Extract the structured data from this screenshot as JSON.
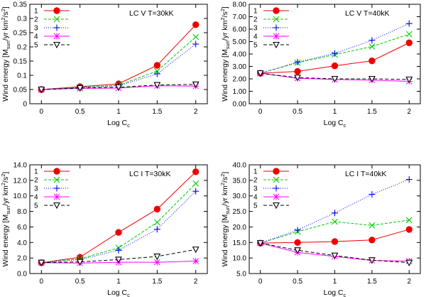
{
  "chart_data": [
    {
      "type": "line",
      "title": "LC V T=30kK",
      "xlabel": "Log C",
      "xlabel_sub": "c",
      "ylabel": "Wind energy [M",
      "ylabel_sub": "sun",
      "ylabel_rest": "/yr km",
      "ylabel_sup1": "2",
      "ylabel_mid": "/s",
      "ylabel_sup2": "2",
      "ylabel_end": "]",
      "x": [
        0,
        0.5,
        1,
        1.5,
        2
      ],
      "xticks": [
        "0",
        "0.5",
        "1",
        "1.5",
        "2"
      ],
      "xlim": [
        -0.15,
        2.15
      ],
      "ylim": [
        0,
        0.35
      ],
      "yticks": [
        0,
        0.05,
        0.1,
        0.15,
        0.2,
        0.25,
        0.3,
        0.35
      ],
      "ytick_labels": [
        "0",
        "0.05",
        "0.1",
        "0.15",
        "0.2",
        "0.25",
        "0.3",
        "0.35"
      ],
      "series": [
        {
          "name": "1",
          "color": "#ee0000",
          "marker": "circle",
          "dash": "",
          "values": [
            0.05,
            0.06,
            0.07,
            0.135,
            0.278
          ]
        },
        {
          "name": "2",
          "color": "#00cc00",
          "marker": "x",
          "dash": "4,2",
          "values": [
            0.05,
            0.058,
            0.065,
            0.115,
            0.235
          ]
        },
        {
          "name": "3",
          "color": "#0000ff",
          "marker": "plus",
          "dash": "1,2",
          "values": [
            0.05,
            0.057,
            0.063,
            0.105,
            0.21
          ]
        },
        {
          "name": "4",
          "color": "#ff00ff",
          "marker": "asterisk",
          "dash": "",
          "values": [
            0.05,
            0.054,
            0.055,
            0.063,
            0.062
          ]
        },
        {
          "name": "5",
          "color": "#000000",
          "marker": "triangle",
          "dash": "5,3",
          "values": [
            0.05,
            0.055,
            0.058,
            0.066,
            0.068
          ]
        }
      ]
    },
    {
      "type": "line",
      "title": "LC V T=40kK",
      "xlabel": "Log C",
      "xlabel_sub": "c",
      "ylabel": "Wind energy [M",
      "ylabel_sub": "sun",
      "ylabel_rest": "/yr km",
      "ylabel_sup1": "2",
      "ylabel_mid": "/s",
      "ylabel_sup2": "2",
      "ylabel_end": "]",
      "x": [
        0,
        0.5,
        1,
        1.5,
        2
      ],
      "xticks": [
        "0",
        "0.5",
        "1",
        "1.5",
        "2"
      ],
      "xlim": [
        -0.15,
        2.15
      ],
      "ylim": [
        0,
        8
      ],
      "yticks": [
        0,
        1,
        2,
        3,
        4,
        5,
        6,
        7,
        8
      ],
      "ytick_labels": [
        "0.00",
        "1.00",
        "2.00",
        "3.00",
        "4.00",
        "5.00",
        "6.00",
        "7.00",
        "8.00"
      ],
      "series": [
        {
          "name": "1",
          "color": "#ee0000",
          "marker": "circle",
          "dash": "",
          "values": [
            2.45,
            2.6,
            3.05,
            3.45,
            4.9
          ]
        },
        {
          "name": "2",
          "color": "#00cc00",
          "marker": "x",
          "dash": "4,2",
          "values": [
            2.45,
            3.3,
            3.95,
            4.6,
            5.6
          ]
        },
        {
          "name": "3",
          "color": "#0000ff",
          "marker": "plus",
          "dash": "1,2",
          "values": [
            2.45,
            3.35,
            4.05,
            5.1,
            6.45
          ]
        },
        {
          "name": "4",
          "color": "#ff00ff",
          "marker": "asterisk",
          "dash": "",
          "values": [
            2.45,
            2.05,
            1.95,
            1.9,
            1.8
          ]
        },
        {
          "name": "5",
          "color": "#000000",
          "marker": "triangle",
          "dash": "5,3",
          "values": [
            2.45,
            2.1,
            2.0,
            2.0,
            1.95
          ]
        }
      ]
    },
    {
      "type": "line",
      "title": "LC I T=30kK",
      "xlabel": "Log C",
      "xlabel_sub": "c",
      "ylabel": "Wind energy [M",
      "ylabel_sub": "sun",
      "ylabel_rest": "/yr km",
      "ylabel_sup1": "2",
      "ylabel_mid": "/s",
      "ylabel_sup2": "2",
      "ylabel_end": "]",
      "x": [
        0,
        0.5,
        1,
        1.5,
        2
      ],
      "xticks": [
        "0",
        "0.5",
        "1",
        "1.5",
        "2"
      ],
      "xlim": [
        -0.15,
        2.15
      ],
      "ylim": [
        0,
        14
      ],
      "yticks": [
        0,
        2,
        4,
        6,
        8,
        10,
        12,
        14
      ],
      "ytick_labels": [
        "0.0",
        "2.0",
        "4.0",
        "6.0",
        "8.0",
        "10.0",
        "12.0",
        "14.0"
      ],
      "series": [
        {
          "name": "1",
          "color": "#ee0000",
          "marker": "circle",
          "dash": "",
          "values": [
            1.4,
            2.1,
            5.3,
            8.3,
            13.1
          ]
        },
        {
          "name": "2",
          "color": "#00cc00",
          "marker": "x",
          "dash": "4,2",
          "values": [
            1.4,
            1.9,
            3.3,
            6.6,
            11.6
          ]
        },
        {
          "name": "3",
          "color": "#0000ff",
          "marker": "plus",
          "dash": "1,2",
          "values": [
            1.4,
            1.8,
            3.0,
            5.7,
            10.6
          ]
        },
        {
          "name": "4",
          "color": "#ff00ff",
          "marker": "asterisk",
          "dash": "",
          "values": [
            1.4,
            1.35,
            1.45,
            1.45,
            1.6
          ]
        },
        {
          "name": "5",
          "color": "#000000",
          "marker": "triangle",
          "dash": "5,3",
          "values": [
            1.4,
            1.5,
            1.8,
            2.2,
            3.1
          ]
        }
      ]
    },
    {
      "type": "line",
      "title": "LC I T=40kK",
      "xlabel": "Log C",
      "xlabel_sub": "c",
      "ylabel": "Wind energy [M",
      "ylabel_sub": "sun",
      "ylabel_rest": "/yr km",
      "ylabel_sup1": "2",
      "ylabel_mid": "/s",
      "ylabel_sup2": "2",
      "ylabel_end": "]",
      "x": [
        0,
        0.5,
        1,
        1.5,
        2
      ],
      "xticks": [
        "0",
        "0.5",
        "1",
        "1.5",
        "2"
      ],
      "xlim": [
        -0.15,
        2.15
      ],
      "ylim": [
        5,
        40
      ],
      "yticks": [
        5,
        10,
        15,
        20,
        25,
        30,
        35,
        40
      ],
      "ytick_labels": [
        "5.0",
        "10.0",
        "15.0",
        "20.0",
        "25.0",
        "30.0",
        "35.0",
        "40.0"
      ],
      "series": [
        {
          "name": "1",
          "color": "#ee0000",
          "marker": "circle",
          "dash": "",
          "values": [
            14.8,
            15.0,
            15.3,
            15.8,
            19.2
          ]
        },
        {
          "name": "2",
          "color": "#00cc00",
          "marker": "x",
          "dash": "4,2",
          "values": [
            14.8,
            18.5,
            21.7,
            20.5,
            22.2
          ]
        },
        {
          "name": "3",
          "color": "#0000ff",
          "marker": "plus",
          "dash": "1,2",
          "values": [
            14.8,
            19.0,
            24.5,
            30.5,
            35.3
          ]
        },
        {
          "name": "4",
          "color": "#ff00ff",
          "marker": "asterisk",
          "dash": "",
          "values": [
            14.8,
            11.8,
            10.5,
            9.2,
            9.0
          ]
        },
        {
          "name": "5",
          "color": "#000000",
          "marker": "triangle",
          "dash": "5,3",
          "values": [
            14.8,
            12.5,
            10.8,
            9.3,
            8.5
          ]
        }
      ]
    }
  ]
}
